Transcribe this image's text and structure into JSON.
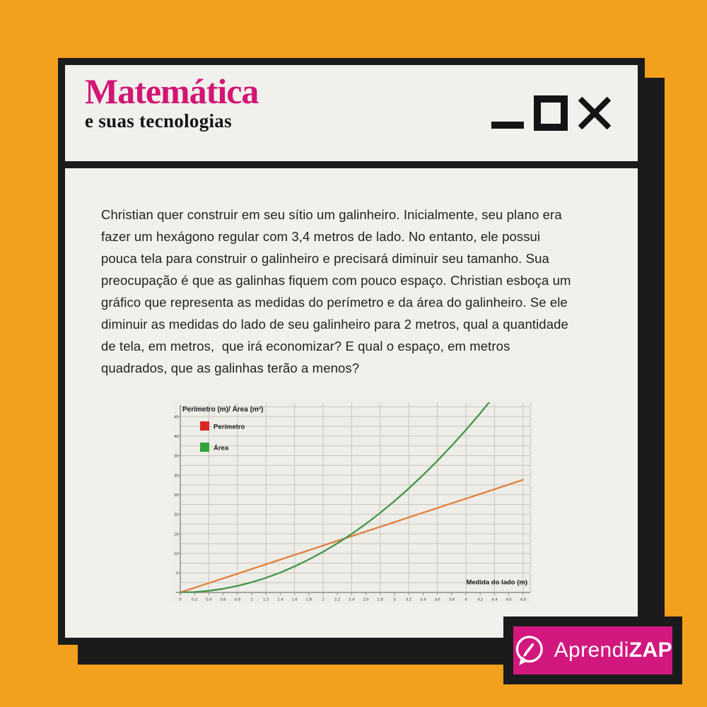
{
  "window": {
    "title": "Matemática",
    "subtitle": "e suas tecnologias",
    "controls": [
      {
        "icon": "minimize-icon"
      },
      {
        "icon": "maximize-icon"
      },
      {
        "icon": "close-icon"
      }
    ]
  },
  "question": {
    "lines": [
      "Christian quer construir em seu sítio um galinheiro. Inicialmente, seu plano era",
      "fazer um hexágono regular com 3,4 metros de lado. No entanto, ele possui",
      "pouca tela para construir o galinheiro e precisará diminuir seu tamanho. Sua",
      "preocupação é que as galinhas fiquem com pouco espaço. Christian esboça um",
      "gráfico que representa as medidas do perímetro e da área do galinheiro. Se ele",
      "diminuir as medidas do lado de seu galinheiro para 2 metros, qual a quantidade",
      "de tela, em metros,  que irá economizar? E qual o espaço, em metros",
      "quadrados, que as galinhas terão a menos?"
    ]
  },
  "chart_data": {
    "type": "line",
    "title": "Perímetro (m)/ Área (m²)",
    "xlabel": "Medida do lado (m)",
    "ylabel": "",
    "xlim": [
      0,
      4.8
    ],
    "ylim": [
      0,
      48.5
    ],
    "x_tick_step": 0.2,
    "y_label_step": 5,
    "x_grid_step": 0.4,
    "y_grid_step": 2.5,
    "grid": true,
    "legend_position": "top-left",
    "series": [
      {
        "name": "Perímetro",
        "legend_color": "#DC2823",
        "line_color": "#E0813F",
        "x": [
          0,
          0.2,
          0.4,
          0.6,
          0.8,
          1,
          1.2,
          1.4,
          1.6,
          1.8,
          2,
          2.2,
          2.4,
          2.6,
          2.8,
          3,
          3.2,
          3.4,
          3.6,
          3.8,
          4,
          4.2,
          4.4,
          4.6,
          4.8
        ],
        "values": [
          0,
          1.2,
          2.4,
          3.6,
          4.8,
          6,
          7.2,
          8.4,
          9.6,
          10.8,
          12,
          13.2,
          14.4,
          15.6,
          16.8,
          18,
          19.2,
          20.4,
          21.6,
          22.8,
          24,
          25.2,
          26.4,
          27.6,
          28.8
        ]
      },
      {
        "name": "Área",
        "legend_color": "#2EA43B",
        "line_color": "#44964A",
        "x": [
          0,
          0.2,
          0.4,
          0.6,
          0.8,
          1,
          1.2,
          1.4,
          1.6,
          1.8,
          2,
          2.2,
          2.4,
          2.6,
          2.8,
          3,
          3.2,
          3.4,
          3.6,
          3.8,
          4,
          4.2,
          4.4
        ],
        "values": [
          0,
          0.1,
          0.42,
          0.94,
          1.66,
          2.6,
          3.74,
          5.09,
          6.65,
          8.42,
          10.39,
          12.57,
          14.97,
          17.56,
          20.37,
          23.38,
          26.6,
          30.03,
          33.67,
          37.52,
          41.57,
          45.83,
          50.3
        ]
      }
    ],
    "colors": {
      "plot_bg": "#EEEDE8",
      "grid": "#C6C5BF",
      "axis": "#8F8F8A",
      "tick_text": "#3C3C3C",
      "label_text": "#1A1A1A"
    }
  },
  "badge": {
    "text_regular": "Aprendi",
    "text_bold": "ZAP",
    "icon": "pencil-speech-bubble-icon",
    "background": "#D2187E"
  },
  "colors": {
    "page_background": "#F2A01E",
    "card_background": "#F1F0EC",
    "frame_black": "#1B1B1B",
    "accent_pink": "#D31573"
  }
}
